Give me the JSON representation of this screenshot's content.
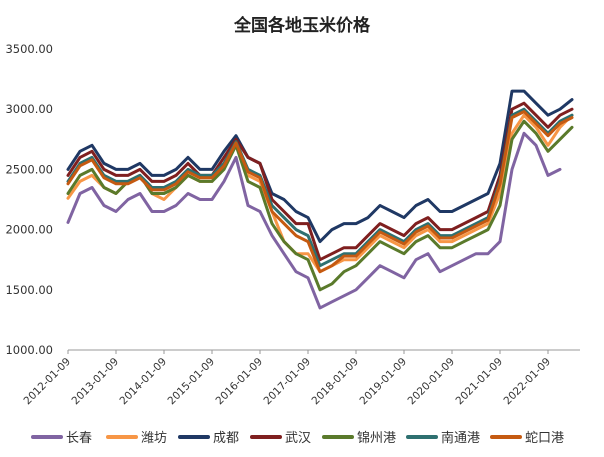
{
  "chart_data": {
    "type": "line",
    "title": "全国各地玉米价格",
    "xlabel": "",
    "ylabel": "",
    "ylim": [
      1000,
      3500
    ],
    "yticks": [
      "1000.00",
      "1500.00",
      "2000.00",
      "2500.00",
      "3000.00",
      "3500.00"
    ],
    "xticks": [
      "2012-01-09",
      "2013-01-09",
      "2014-01-09",
      "2015-01-09",
      "2016-01-09",
      "2017-01-09",
      "2018-01-09",
      "2019-01-09",
      "2020-01-09",
      "2021-01-09",
      "2022-01-09"
    ],
    "grid": false,
    "legend": "bottom",
    "x": [
      "2012-01",
      "2012-04",
      "2012-07",
      "2012-10",
      "2013-01",
      "2013-04",
      "2013-07",
      "2013-10",
      "2014-01",
      "2014-04",
      "2014-07",
      "2014-10",
      "2015-01",
      "2015-04",
      "2015-07",
      "2015-10",
      "2016-01",
      "2016-04",
      "2016-07",
      "2016-10",
      "2017-01",
      "2017-04",
      "2017-07",
      "2017-10",
      "2018-01",
      "2018-04",
      "2018-07",
      "2018-10",
      "2019-01",
      "2019-04",
      "2019-07",
      "2019-10",
      "2020-01",
      "2020-04",
      "2020-07",
      "2020-10",
      "2021-01",
      "2021-04",
      "2021-07",
      "2021-10",
      "2022-01",
      "2022-04",
      "2022-07"
    ],
    "series": [
      {
        "name": "长春",
        "color": "#8064a2",
        "values": [
          2060,
          2300,
          2350,
          2200,
          2150,
          2250,
          2300,
          2150,
          2150,
          2200,
          2300,
          2250,
          2250,
          2400,
          2600,
          2200,
          2150,
          1950,
          1800,
          1650,
          1600,
          1350,
          1400,
          1450,
          1500,
          1600,
          1700,
          1650,
          1600,
          1750,
          1800,
          1650,
          1700,
          1750,
          1800,
          1800,
          1900,
          2500,
          2800,
          2700,
          2450,
          2500,
          null
        ]
      },
      {
        "name": "潍坊",
        "color": "#f79646",
        "values": [
          2260,
          2400,
          2450,
          2350,
          2300,
          2400,
          2450,
          2300,
          2250,
          2350,
          2450,
          2400,
          2400,
          2550,
          2700,
          2450,
          2400,
          2150,
          1900,
          1800,
          1800,
          1650,
          1700,
          1750,
          1750,
          1850,
          1950,
          1900,
          1850,
          1950,
          2000,
          1900,
          1900,
          1950,
          2000,
          2050,
          2300,
          2800,
          2950,
          2850,
          2700,
          2850,
          2950
        ]
      },
      {
        "name": "成都",
        "color": "#1f3864",
        "values": [
          2500,
          2650,
          2700,
          2550,
          2500,
          2500,
          2550,
          2450,
          2450,
          2500,
          2600,
          2500,
          2500,
          2650,
          2780,
          2600,
          2550,
          2300,
          2250,
          2150,
          2100,
          1900,
          2000,
          2050,
          2050,
          2100,
          2200,
          2150,
          2100,
          2200,
          2250,
          2150,
          2150,
          2200,
          2250,
          2300,
          2550,
          3150,
          3150,
          3050,
          2950,
          3000,
          3080
        ]
      },
      {
        "name": "武汉",
        "color": "#7f1f1f",
        "values": [
          2450,
          2600,
          2650,
          2500,
          2450,
          2450,
          2500,
          2400,
          2400,
          2450,
          2550,
          2450,
          2450,
          2600,
          2750,
          2600,
          2550,
          2250,
          2150,
          2050,
          2050,
          1750,
          1800,
          1850,
          1850,
          1950,
          2050,
          2000,
          1950,
          2050,
          2100,
          2000,
          2000,
          2050,
          2100,
          2150,
          2450,
          3000,
          3050,
          2950,
          2850,
          2950,
          3000
        ]
      },
      {
        "name": "锦州港",
        "color": "#5a7a2b",
        "values": [
          2300,
          2450,
          2500,
          2350,
          2300,
          2400,
          2450,
          2300,
          2300,
          2350,
          2450,
          2400,
          2400,
          2500,
          2700,
          2400,
          2350,
          2050,
          1900,
          1800,
          1750,
          1500,
          1550,
          1650,
          1700,
          1800,
          1900,
          1850,
          1800,
          1900,
          1950,
          1850,
          1850,
          1900,
          1950,
          2000,
          2200,
          2750,
          2900,
          2800,
          2650,
          2750,
          2850
        ]
      },
      {
        "name": "南通港",
        "color": "#2e7070",
        "values": [
          2400,
          2550,
          2600,
          2450,
          2400,
          2400,
          2450,
          2350,
          2350,
          2400,
          2500,
          2450,
          2450,
          2550,
          2730,
          2500,
          2450,
          2200,
          2100,
          2000,
          1950,
          1700,
          1750,
          1800,
          1800,
          1900,
          2000,
          1950,
          1900,
          2000,
          2050,
          1950,
          1950,
          2000,
          2050,
          2100,
          2400,
          2950,
          3000,
          2900,
          2800,
          2900,
          2950
        ]
      },
      {
        "name": "蛇口港",
        "color": "#c55a11",
        "values": [
          2380,
          2530,
          2580,
          2430,
          2380,
          2380,
          2430,
          2330,
          2330,
          2380,
          2480,
          2430,
          2430,
          2530,
          2720,
          2480,
          2430,
          2150,
          2050,
          1950,
          1900,
          1650,
          1700,
          1780,
          1780,
          1880,
          1980,
          1930,
          1880,
          1980,
          2030,
          1930,
          1930,
          1980,
          2030,
          2080,
          2380,
          2930,
          2980,
          2880,
          2780,
          2880,
          2930
        ]
      }
    ]
  }
}
